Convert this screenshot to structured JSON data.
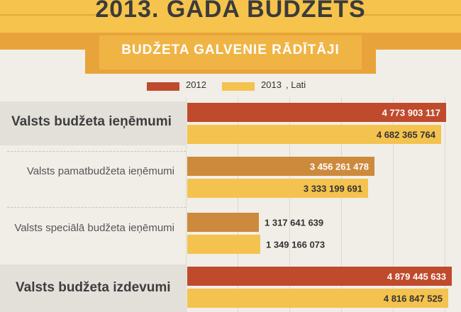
{
  "header": {
    "title": "2013. GADA BUDŽETS",
    "subtitle": "BUDŽETA GALVENIE RĀDĪTĀJI"
  },
  "legend": {
    "item_2012": "2012",
    "item_2013": "2013",
    "unit": ", Lati"
  },
  "colors": {
    "c2012": "#bf4a2c",
    "c2012_light": "#cd8a3c",
    "c2013": "#f4c24e",
    "band": "#f6c44c",
    "ribbon": "#e8a43a"
  },
  "chart_data": {
    "type": "bar",
    "orientation": "horizontal",
    "unit": "Lati",
    "categories": [
      "Valsts budžeta ieņēmumi",
      "Valsts pamatbudžeta ieņēmumi",
      "Valsts speciālā budžeta ieņēmumi",
      "Valsts budžeta izdevumi"
    ],
    "series": [
      {
        "name": "2012",
        "values": [
          4773903117,
          3456261478,
          1317641639,
          4879445633
        ],
        "labels": [
          "4 773 903 117",
          "3 456 261 478",
          "1 317 641 639",
          "4 879 445 633"
        ]
      },
      {
        "name": "2013",
        "values": [
          4682365764,
          3333199691,
          1349166073,
          4816847525
        ],
        "labels": [
          "4 682 365 764",
          "3 333 199 691",
          "1 349 166 073",
          "4 816 847 525"
        ]
      }
    ],
    "legend_position": "top",
    "grid": true
  }
}
